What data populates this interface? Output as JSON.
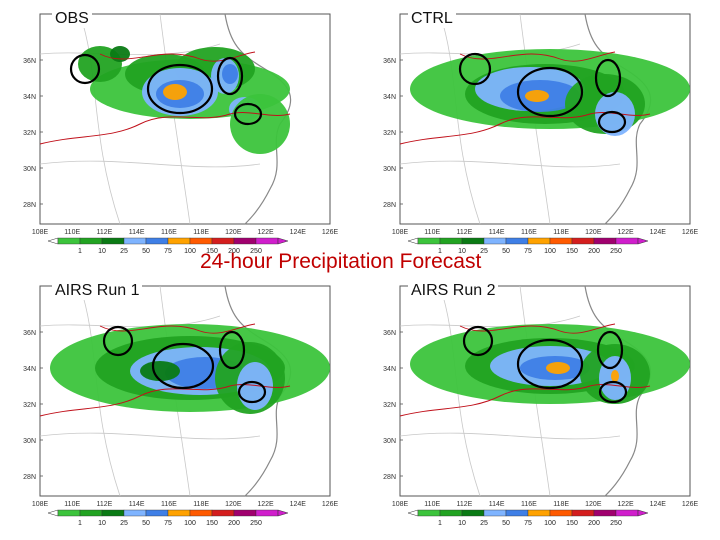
{
  "title": "24-hour Precipitation Forecast",
  "panels": [
    {
      "id": "obs",
      "label": "OBS"
    },
    {
      "id": "ctrl",
      "label": "CTRL"
    },
    {
      "id": "airs1",
      "label": "AIRS Run 1"
    },
    {
      "id": "airs2",
      "label": "AIRS Run 2"
    }
  ],
  "axes": {
    "lat_labels": [
      "28N",
      "30N",
      "32N",
      "34N",
      "36N"
    ],
    "lon_labels": [
      "108E",
      "110E",
      "112E",
      "114E",
      "116E",
      "118E",
      "120E",
      "122E",
      "124E",
      "126E"
    ]
  },
  "colorbar": {
    "levels": [
      "1",
      "10",
      "25",
      "50",
      "75",
      "100",
      "150",
      "200",
      "250"
    ],
    "colors": [
      "#3cc43c",
      "#22a322",
      "#0a7a14",
      "#7fb4ff",
      "#3f7fe6",
      "#ffa200",
      "#ff5a00",
      "#d41e1e",
      "#a0006e",
      "#d01ecc"
    ]
  }
}
